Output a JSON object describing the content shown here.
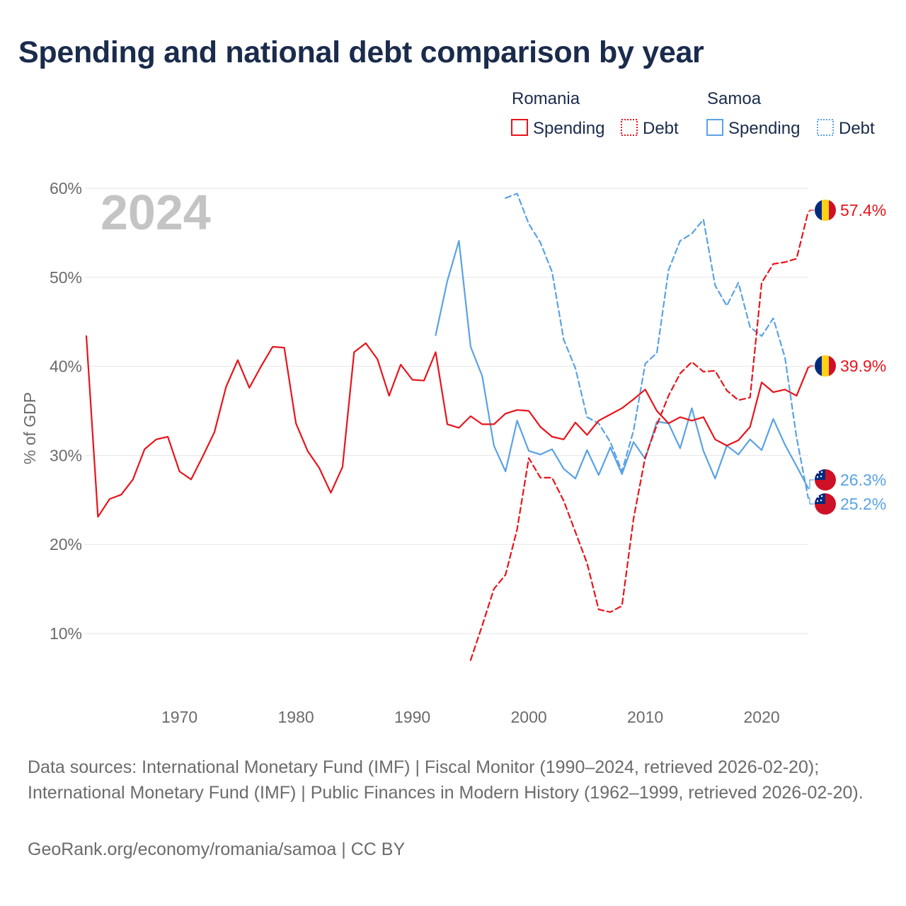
{
  "title": "Spending and national debt comparison by year",
  "watermark_year": "2024",
  "legend": {
    "groups": [
      {
        "country": "Romania",
        "color": "#e8141c",
        "items": [
          {
            "label": "Spending",
            "style": "solid"
          },
          {
            "label": "Debt",
            "style": "dotted"
          }
        ]
      },
      {
        "country": "Samoa",
        "color": "#5aa2e6",
        "items": [
          {
            "label": "Spending",
            "style": "solid"
          },
          {
            "label": "Debt",
            "style": "dotted"
          }
        ]
      }
    ]
  },
  "footer": {
    "sources": "Data sources: International Monetary Fund (IMF) | Fiscal Monitor (1990–2024, retrieved 2026-02-20); International Monetary Fund (IMF) | Public Finances in Modern History (1962–1999, retrieved 2026-02-20).",
    "credit": "GeoRank.org/economy/romania/samoa | CC BY"
  },
  "colors": {
    "romania": "#e8141c",
    "samoa": "#5aa2e6",
    "title": "#1a2b4c",
    "axis_text": "#6b6b6b",
    "grid": "#e6e6e6",
    "watermark": "#c4c4c4"
  },
  "chart_data": {
    "type": "line",
    "title": "Spending and national debt comparison by year",
    "xlabel": "",
    "ylabel": "% of GDP",
    "xlim": [
      1961,
      2025
    ],
    "ylim": [
      5,
      60
    ],
    "y_ticks": [
      10,
      20,
      30,
      40,
      50,
      60
    ],
    "y_tick_labels": [
      "10%",
      "20%",
      "30%",
      "40%",
      "50%",
      "60%"
    ],
    "x_ticks": [
      1970,
      1980,
      1990,
      2000,
      2010,
      2020
    ],
    "x_tick_labels": [
      "1970",
      "1980",
      "1990",
      "2000",
      "2010",
      "2020"
    ],
    "grid": true,
    "series": [
      {
        "name": "Romania Spending",
        "country": "Romania",
        "metric": "Spending",
        "dash": "solid",
        "end_label": "39.9%",
        "flag": "romania",
        "x": [
          1962,
          1963,
          1964,
          1965,
          1966,
          1967,
          1968,
          1969,
          1970,
          1971,
          1972,
          1973,
          1974,
          1975,
          1976,
          1977,
          1978,
          1979,
          1980,
          1981,
          1982,
          1983,
          1984,
          1985,
          1986,
          1987,
          1988,
          1989,
          1990,
          1991,
          1992,
          1993,
          1994,
          1995,
          1996,
          1997,
          1998,
          1999,
          2000,
          2001,
          2002,
          2003,
          2004,
          2005,
          2006,
          2007,
          2008,
          2009,
          2010,
          2011,
          2012,
          2013,
          2014,
          2015,
          2016,
          2017,
          2018,
          2019,
          2020,
          2021,
          2022,
          2023,
          2024
        ],
        "values": [
          43.4,
          23.1,
          25.1,
          25.6,
          27.3,
          30.7,
          31.8,
          32.1,
          28.2,
          27.3,
          29.9,
          32.6,
          37.7,
          40.7,
          37.6,
          40.0,
          42.2,
          42.1,
          33.6,
          30.5,
          28.6,
          25.8,
          28.7,
          41.6,
          42.6,
          40.8,
          36.7,
          40.2,
          38.5,
          38.4,
          41.6,
          33.5,
          33.1,
          34.4,
          33.5,
          33.5,
          34.7,
          35.1,
          35.0,
          33.2,
          32.1,
          31.8,
          33.7,
          32.3,
          33.9,
          34.6,
          35.3,
          36.3,
          37.4,
          35.0,
          33.6,
          34.3,
          33.9,
          34.3,
          31.8,
          31.1,
          31.7,
          33.2,
          38.2,
          37.1,
          37.4,
          36.7,
          39.9
        ]
      },
      {
        "name": "Romania Debt",
        "country": "Romania",
        "metric": "Debt",
        "dash": "dashed",
        "end_label": "57.4%",
        "flag": "romania",
        "x": [
          1995,
          1996,
          1997,
          1998,
          1999,
          2000,
          2001,
          2002,
          2003,
          2004,
          2005,
          2006,
          2007,
          2008,
          2009,
          2010,
          2011,
          2012,
          2013,
          2014,
          2015,
          2016,
          2017,
          2018,
          2019,
          2020,
          2021,
          2022,
          2023,
          2024
        ],
        "values": [
          7.0,
          10.9,
          15.0,
          16.6,
          21.7,
          29.7,
          27.5,
          27.5,
          24.9,
          21.4,
          17.9,
          12.7,
          12.4,
          13.1,
          22.9,
          29.8,
          33.4,
          36.7,
          39.2,
          40.5,
          39.4,
          39.5,
          37.3,
          36.2,
          36.5,
          49.4,
          51.5,
          51.7,
          52.1,
          57.4
        ]
      },
      {
        "name": "Samoa Spending",
        "country": "Samoa",
        "metric": "Spending",
        "dash": "solid",
        "end_label": "26.3%",
        "flag": "samoa",
        "x": [
          1992,
          1993,
          1994,
          1995,
          1996,
          1997,
          1998,
          1999,
          2000,
          2001,
          2002,
          2003,
          2004,
          2005,
          2006,
          2007,
          2008,
          2009,
          2010,
          2011,
          2012,
          2013,
          2014,
          2015,
          2016,
          2017,
          2018,
          2019,
          2020,
          2021,
          2022,
          2023,
          2024
        ],
        "values": [
          43.5,
          49.6,
          54.1,
          42.2,
          38.9,
          31.1,
          28.2,
          33.9,
          30.5,
          30.1,
          30.7,
          28.5,
          27.4,
          30.6,
          27.8,
          30.9,
          27.9,
          31.5,
          29.6,
          33.8,
          33.6,
          30.8,
          35.3,
          30.5,
          27.4,
          31.1,
          30.1,
          31.8,
          30.6,
          34.1,
          31.2,
          28.8,
          26.3
        ]
      },
      {
        "name": "Samoa Debt",
        "country": "Samoa",
        "metric": "Debt",
        "dash": "dashed",
        "end_label": "25.2%",
        "flag": "samoa",
        "x": [
          1998,
          1999,
          2000,
          2001,
          2002,
          2003,
          2004,
          2005,
          2006,
          2007,
          2008,
          2009,
          2010,
          2011,
          2012,
          2013,
          2014,
          2015,
          2016,
          2017,
          2018,
          2019,
          2020,
          2021,
          2022,
          2023,
          2024
        ],
        "values": [
          58.9,
          59.4,
          56.0,
          53.9,
          50.6,
          43.0,
          39.8,
          34.3,
          33.6,
          31.5,
          28.2,
          32.8,
          40.3,
          41.5,
          50.8,
          54.1,
          54.9,
          56.5,
          49.1,
          46.8,
          49.4,
          44.4,
          43.4,
          45.4,
          41.0,
          32.0,
          25.2
        ]
      }
    ]
  }
}
